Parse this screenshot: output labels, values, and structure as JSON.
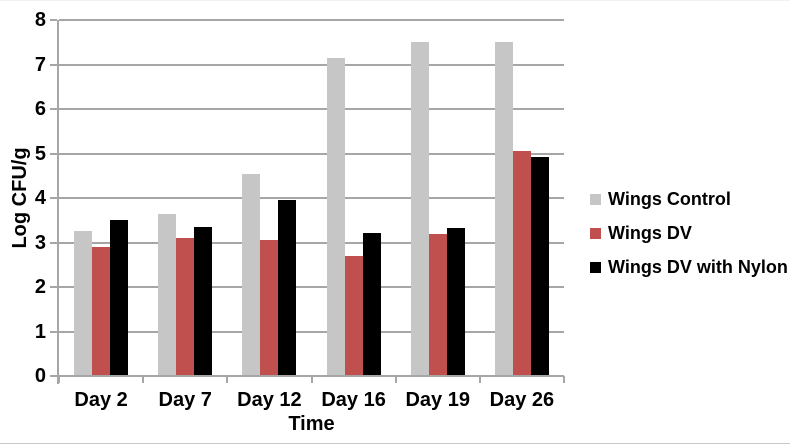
{
  "chart_data": {
    "type": "bar",
    "title": "",
    "xlabel": "Time",
    "ylabel": "Log CFU/g",
    "ylim": [
      0,
      8
    ],
    "yticks": [
      0,
      1,
      2,
      3,
      4,
      5,
      6,
      7,
      8
    ],
    "grid": true,
    "legend_position": "right",
    "categories": [
      "Day 2",
      "Day 7",
      "Day 12",
      "Day 16",
      "Day 19",
      "Day 26"
    ],
    "series": [
      {
        "name": "Wings Control",
        "color": "#C6C6C6",
        "values": [
          3.25,
          3.65,
          4.55,
          7.15,
          7.5,
          7.5
        ]
      },
      {
        "name": "Wings DV",
        "color": "#C0504D",
        "values": [
          2.9,
          3.1,
          3.05,
          2.7,
          3.2,
          5.05
        ]
      },
      {
        "name": "Wings DV with Nylon",
        "color": "#000000",
        "values": [
          3.5,
          3.35,
          3.95,
          3.22,
          3.33,
          4.93
        ]
      }
    ],
    "colors": {
      "gridline": "#A6A6A6",
      "axis": "#A6A6A6",
      "text": "#000000",
      "background": "#FFFFFF"
    }
  }
}
